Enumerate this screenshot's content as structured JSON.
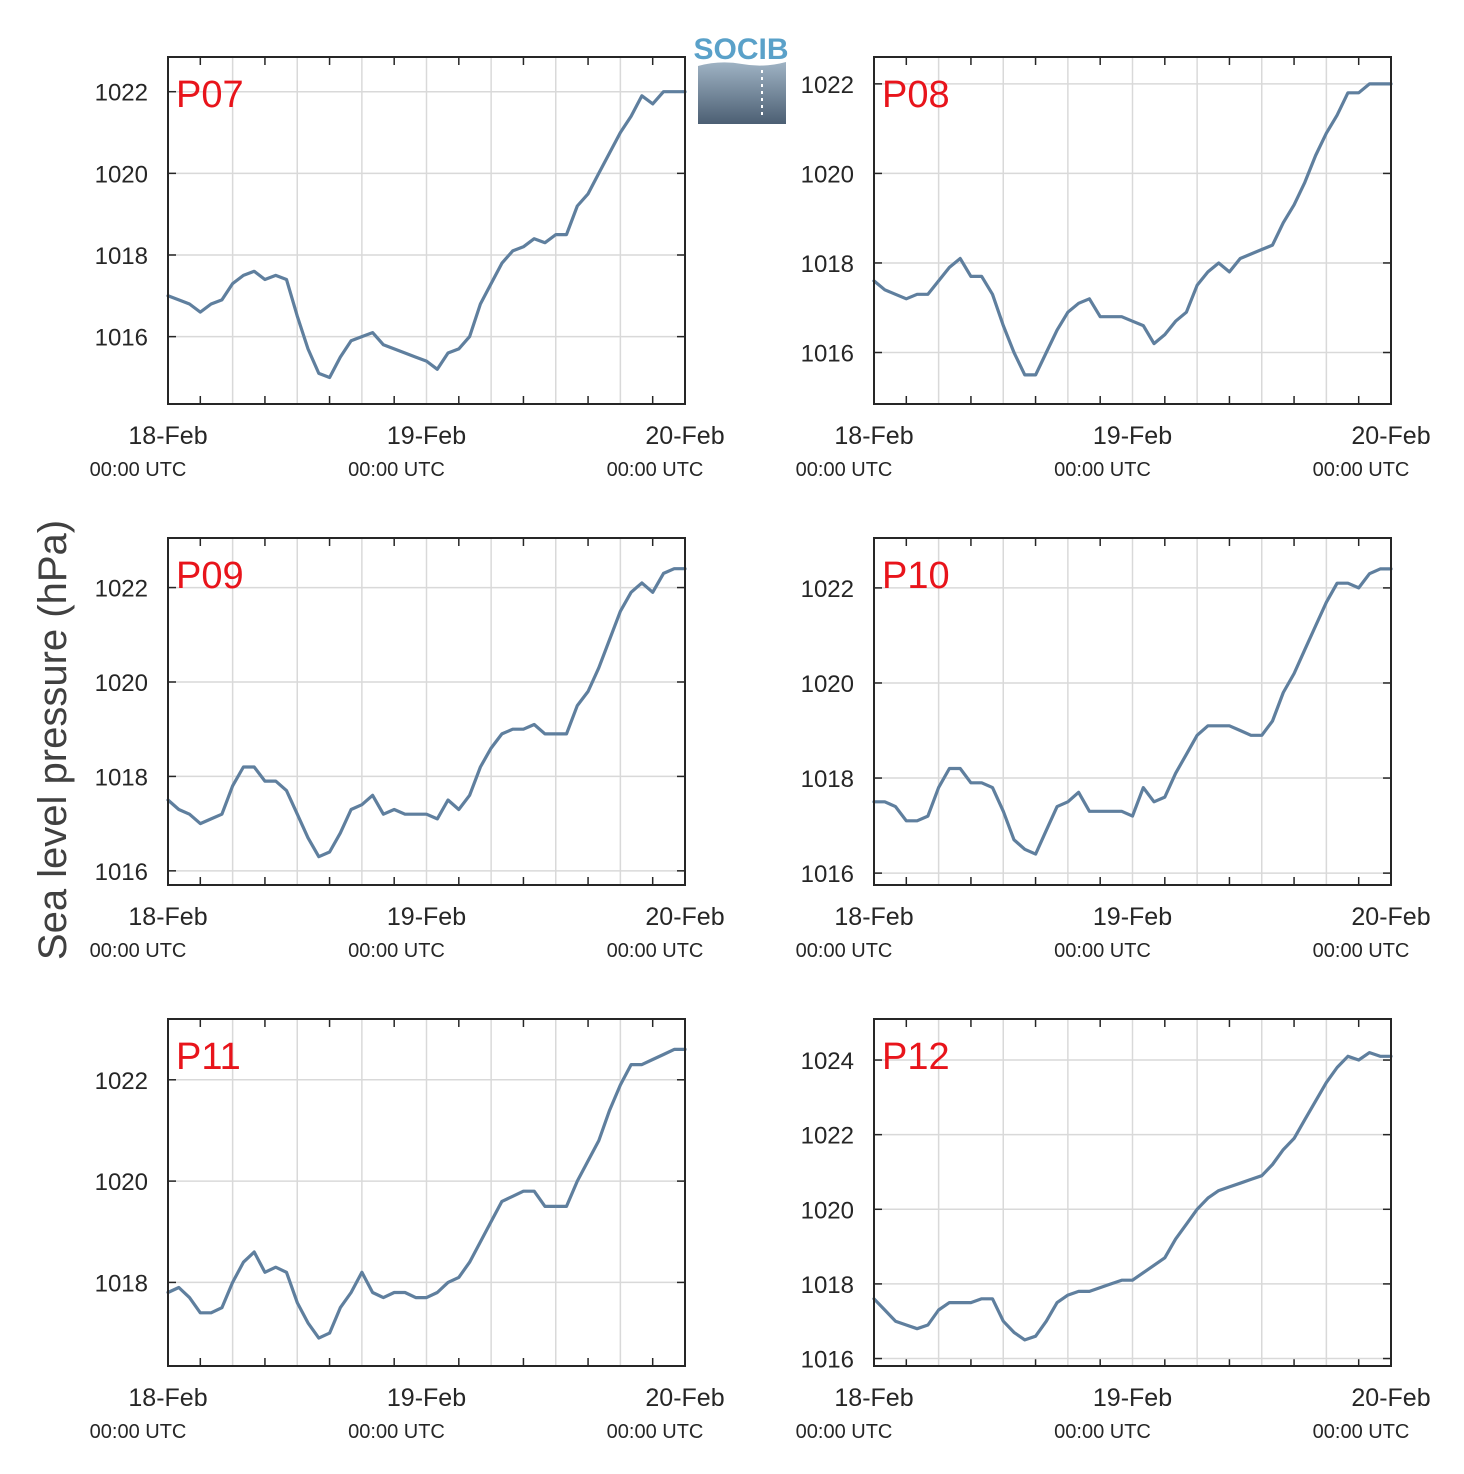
{
  "figure": {
    "ylabel": "Sea level pressure (hPa)",
    "logo_text": "SOCIB",
    "colors": {
      "line": "#5f7f9e",
      "panel_label": "#e8141b",
      "grid": "#d9d9d9",
      "axis": "#262626"
    }
  },
  "chart_data": [
    {
      "type": "line",
      "title": "P07",
      "xlim": [
        0,
        48
      ],
      "ylim": [
        1014.35,
        1022.85
      ],
      "yticks": [
        1016,
        1018,
        1020,
        1022
      ],
      "xticks": [
        {
          "x": 0,
          "date": "18-Feb",
          "time": "00:00 UTC"
        },
        {
          "x": 24,
          "date": "19-Feb",
          "time": "00:00 UTC"
        },
        {
          "x": 48,
          "date": "20-Feb",
          "time": "00:00 UTC"
        }
      ],
      "series": [
        {
          "x": [
            0,
            1,
            2,
            3,
            4,
            5,
            6,
            7,
            8,
            9,
            10,
            11,
            12,
            13,
            14,
            15,
            16,
            17,
            18,
            19,
            20,
            21,
            22,
            23,
            24,
            25,
            26,
            27,
            28,
            29,
            30,
            31,
            32,
            33,
            34,
            35,
            36,
            37,
            38,
            39,
            40,
            41,
            42,
            43,
            44,
            45,
            46,
            47,
            48
          ],
          "y": [
            1017.0,
            1016.9,
            1016.8,
            1016.6,
            1016.8,
            1016.9,
            1017.3,
            1017.5,
            1017.6,
            1017.4,
            1017.5,
            1017.4,
            1016.5,
            1015.7,
            1015.1,
            1015.0,
            1015.5,
            1015.9,
            1016.0,
            1016.1,
            1015.8,
            1015.7,
            1015.6,
            1015.5,
            1015.4,
            1015.2,
            1015.6,
            1015.7,
            1016.0,
            1016.8,
            1017.3,
            1017.8,
            1018.1,
            1018.2,
            1018.4,
            1018.3,
            1018.5,
            1018.5,
            1019.2,
            1019.5,
            1020.0,
            1020.5,
            1021.0,
            1021.4,
            1021.9,
            1021.7,
            1022.0,
            1022.0,
            1022.0
          ]
        }
      ]
    },
    {
      "type": "line",
      "title": "P08",
      "xlim": [
        0,
        48
      ],
      "ylim": [
        1014.85,
        1022.6
      ],
      "yticks": [
        1016,
        1018,
        1020,
        1022
      ],
      "xticks": [
        {
          "x": 0,
          "date": "18-Feb",
          "time": "00:00 UTC"
        },
        {
          "x": 24,
          "date": "19-Feb",
          "time": "00:00 UTC"
        },
        {
          "x": 48,
          "date": "20-Feb",
          "time": "00:00 UTC"
        }
      ],
      "series": [
        {
          "x": [
            0,
            1,
            2,
            3,
            4,
            5,
            6,
            7,
            8,
            9,
            10,
            11,
            12,
            13,
            14,
            15,
            16,
            17,
            18,
            19,
            20,
            21,
            22,
            23,
            24,
            25,
            26,
            27,
            28,
            29,
            30,
            31,
            32,
            33,
            34,
            35,
            36,
            37,
            38,
            39,
            40,
            41,
            42,
            43,
            44,
            45,
            46,
            47,
            48
          ],
          "y": [
            1017.6,
            1017.4,
            1017.3,
            1017.2,
            1017.3,
            1017.3,
            1017.6,
            1017.9,
            1018.1,
            1017.7,
            1017.7,
            1017.3,
            1016.6,
            1016.0,
            1015.5,
            1015.5,
            1016.0,
            1016.5,
            1016.9,
            1017.1,
            1017.2,
            1016.8,
            1016.8,
            1016.8,
            1016.7,
            1016.6,
            1016.2,
            1016.4,
            1016.7,
            1016.9,
            1017.5,
            1017.8,
            1018.0,
            1017.8,
            1018.1,
            1018.2,
            1018.3,
            1018.4,
            1018.9,
            1019.3,
            1019.8,
            1020.4,
            1020.9,
            1021.3,
            1021.8,
            1021.8,
            1022.0,
            1022.0,
            1022.0
          ]
        }
      ]
    },
    {
      "type": "line",
      "title": "P09",
      "xlim": [
        0,
        48
      ],
      "ylim": [
        1015.7,
        1023.05
      ],
      "yticks": [
        1016,
        1018,
        1020,
        1022
      ],
      "xticks": [
        {
          "x": 0,
          "date": "18-Feb",
          "time": "00:00 UTC"
        },
        {
          "x": 24,
          "date": "19-Feb",
          "time": "00:00 UTC"
        },
        {
          "x": 48,
          "date": "20-Feb",
          "time": "00:00 UTC"
        }
      ],
      "series": [
        {
          "x": [
            0,
            1,
            2,
            3,
            4,
            5,
            6,
            7,
            8,
            9,
            10,
            11,
            12,
            13,
            14,
            15,
            16,
            17,
            18,
            19,
            20,
            21,
            22,
            23,
            24,
            25,
            26,
            27,
            28,
            29,
            30,
            31,
            32,
            33,
            34,
            35,
            36,
            37,
            38,
            39,
            40,
            41,
            42,
            43,
            44,
            45,
            46,
            47,
            48
          ],
          "y": [
            1017.5,
            1017.3,
            1017.2,
            1017.0,
            1017.1,
            1017.2,
            1017.8,
            1018.2,
            1018.2,
            1017.9,
            1017.9,
            1017.7,
            1017.2,
            1016.7,
            1016.3,
            1016.4,
            1016.8,
            1017.3,
            1017.4,
            1017.6,
            1017.2,
            1017.3,
            1017.2,
            1017.2,
            1017.2,
            1017.1,
            1017.5,
            1017.3,
            1017.6,
            1018.2,
            1018.6,
            1018.9,
            1019.0,
            1019.0,
            1019.1,
            1018.9,
            1018.9,
            1018.9,
            1019.5,
            1019.8,
            1020.3,
            1020.9,
            1021.5,
            1021.9,
            1022.1,
            1021.9,
            1022.3,
            1022.4,
            1022.4
          ]
        }
      ]
    },
    {
      "type": "line",
      "title": "P10",
      "xlim": [
        0,
        48
      ],
      "ylim": [
        1015.75,
        1023.05
      ],
      "yticks": [
        1016,
        1018,
        1020,
        1022
      ],
      "xticks": [
        {
          "x": 0,
          "date": "18-Feb",
          "time": "00:00 UTC"
        },
        {
          "x": 24,
          "date": "19-Feb",
          "time": "00:00 UTC"
        },
        {
          "x": 48,
          "date": "20-Feb",
          "time": "00:00 UTC"
        }
      ],
      "series": [
        {
          "x": [
            0,
            1,
            2,
            3,
            4,
            5,
            6,
            7,
            8,
            9,
            10,
            11,
            12,
            13,
            14,
            15,
            16,
            17,
            18,
            19,
            20,
            21,
            22,
            23,
            24,
            25,
            26,
            27,
            28,
            29,
            30,
            31,
            32,
            33,
            34,
            35,
            36,
            37,
            38,
            39,
            40,
            41,
            42,
            43,
            44,
            45,
            46,
            47,
            48
          ],
          "y": [
            1017.5,
            1017.5,
            1017.4,
            1017.1,
            1017.1,
            1017.2,
            1017.8,
            1018.2,
            1018.2,
            1017.9,
            1017.9,
            1017.8,
            1017.3,
            1016.7,
            1016.5,
            1016.4,
            1016.9,
            1017.4,
            1017.5,
            1017.7,
            1017.3,
            1017.3,
            1017.3,
            1017.3,
            1017.2,
            1017.8,
            1017.5,
            1017.6,
            1018.1,
            1018.5,
            1018.9,
            1019.1,
            1019.1,
            1019.1,
            1019.0,
            1018.9,
            1018.9,
            1019.2,
            1019.8,
            1020.2,
            1020.7,
            1021.2,
            1021.7,
            1022.1,
            1022.1,
            1022.0,
            1022.3,
            1022.4,
            1022.4
          ]
        }
      ]
    },
    {
      "type": "line",
      "title": "P11",
      "xlim": [
        0,
        48
      ],
      "ylim": [
        1016.35,
        1023.2
      ],
      "yticks": [
        1018,
        1020,
        1022
      ],
      "xticks": [
        {
          "x": 0,
          "date": "18-Feb",
          "time": "00:00 UTC"
        },
        {
          "x": 24,
          "date": "19-Feb",
          "time": "00:00 UTC"
        },
        {
          "x": 48,
          "date": "20-Feb",
          "time": "00:00 UTC"
        }
      ],
      "series": [
        {
          "x": [
            0,
            1,
            2,
            3,
            4,
            5,
            6,
            7,
            8,
            9,
            10,
            11,
            12,
            13,
            14,
            15,
            16,
            17,
            18,
            19,
            20,
            21,
            22,
            23,
            24,
            25,
            26,
            27,
            28,
            29,
            30,
            31,
            32,
            33,
            34,
            35,
            36,
            37,
            38,
            39,
            40,
            41,
            42,
            43,
            44,
            45,
            46,
            47,
            48
          ],
          "y": [
            1017.8,
            1017.9,
            1017.7,
            1017.4,
            1017.4,
            1017.5,
            1018.0,
            1018.4,
            1018.6,
            1018.2,
            1018.3,
            1018.2,
            1017.6,
            1017.2,
            1016.9,
            1017.0,
            1017.5,
            1017.8,
            1018.2,
            1017.8,
            1017.7,
            1017.8,
            1017.8,
            1017.7,
            1017.7,
            1017.8,
            1018.0,
            1018.1,
            1018.4,
            1018.8,
            1019.2,
            1019.6,
            1019.7,
            1019.8,
            1019.8,
            1019.5,
            1019.5,
            1019.5,
            1020.0,
            1020.4,
            1020.8,
            1021.4,
            1021.9,
            1022.3,
            1022.3,
            1022.4,
            1022.5,
            1022.6,
            1022.6
          ]
        }
      ]
    },
    {
      "type": "line",
      "title": "P12",
      "xlim": [
        0,
        48
      ],
      "ylim": [
        1015.8,
        1025.1
      ],
      "yticks": [
        1016,
        1018,
        1020,
        1022,
        1024
      ],
      "xticks": [
        {
          "x": 0,
          "date": "18-Feb",
          "time": "00:00 UTC"
        },
        {
          "x": 24,
          "date": "19-Feb",
          "time": "00:00 UTC"
        },
        {
          "x": 48,
          "date": "20-Feb",
          "time": "00:00 UTC"
        }
      ],
      "series": [
        {
          "x": [
            0,
            1,
            2,
            3,
            4,
            5,
            6,
            7,
            8,
            9,
            10,
            11,
            12,
            13,
            14,
            15,
            16,
            17,
            18,
            19,
            20,
            21,
            22,
            23,
            24,
            25,
            26,
            27,
            28,
            29,
            30,
            31,
            32,
            33,
            34,
            35,
            36,
            37,
            38,
            39,
            40,
            41,
            42,
            43,
            44,
            45,
            46,
            47,
            48
          ],
          "y": [
            1017.6,
            1017.3,
            1017.0,
            1016.9,
            1016.8,
            1016.9,
            1017.3,
            1017.5,
            1017.5,
            1017.5,
            1017.6,
            1017.6,
            1017.0,
            1016.7,
            1016.5,
            1016.6,
            1017.0,
            1017.5,
            1017.7,
            1017.8,
            1017.8,
            1017.9,
            1018.0,
            1018.1,
            1018.1,
            1018.3,
            1018.5,
            1018.7,
            1019.2,
            1019.6,
            1020.0,
            1020.3,
            1020.5,
            1020.6,
            1020.7,
            1020.8,
            1020.9,
            1021.2,
            1021.6,
            1021.9,
            1022.4,
            1022.9,
            1023.4,
            1023.8,
            1024.1,
            1024.0,
            1024.2,
            1024.1,
            1024.1
          ]
        }
      ]
    }
  ]
}
